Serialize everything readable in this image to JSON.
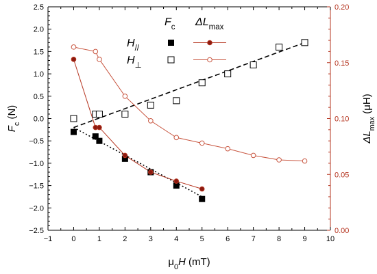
{
  "chart_data": {
    "type": "scatter",
    "x_axis": {
      "label": "μ0H (mT)",
      "label_parts": [
        "μ",
        "0",
        "H",
        " (mT)"
      ],
      "range": [
        -1,
        10
      ],
      "ticks": [
        -1,
        0,
        1,
        2,
        3,
        4,
        5,
        6,
        7,
        8,
        9,
        10
      ],
      "tick_labels": [
        "−1",
        "0",
        "1",
        "2",
        "3",
        "4",
        "5",
        "6",
        "7",
        "8",
        "9",
        "10"
      ]
    },
    "y_axis_left": {
      "label": "Fc (N)",
      "label_parts": [
        "F",
        "c",
        " (N)"
      ],
      "range": [
        -2.5,
        2.5
      ],
      "ticks": [
        -2.5,
        -2.0,
        -1.5,
        -1.0,
        -0.5,
        0.0,
        0.5,
        1.0,
        1.5,
        2.0,
        2.5
      ],
      "tick_labels": [
        "−2.5",
        "−2.0",
        "−1.5",
        "−1.0",
        "−0.5",
        "0.0",
        "0.5",
        "1.0",
        "1.5",
        "2.0",
        "2.5"
      ]
    },
    "y_axis_right": {
      "label": "ΔLmax (μH)",
      "label_parts": [
        "ΔL",
        "max",
        " (μH)"
      ],
      "range": [
        0.0,
        0.2
      ],
      "ticks": [
        0.0,
        0.05,
        0.1,
        0.15,
        0.2
      ],
      "tick_labels": [
        "0.00",
        "0.05",
        "0.10",
        "0.15",
        "0.20"
      ],
      "color": "#b5341f"
    },
    "legend": {
      "placement": "top-center",
      "col_headers": [
        {
          "parts": [
            "F",
            "c"
          ]
        },
        {
          "parts": [
            "ΔL",
            "max"
          ]
        }
      ],
      "rows": [
        {
          "parts": [
            "H",
            "//"
          ]
        },
        {
          "parts": [
            "H",
            "⊥"
          ]
        }
      ]
    },
    "series": [
      {
        "name": "Fc H//",
        "axis": "left",
        "marker": "square-filled",
        "color": "#000000",
        "x": [
          0,
          0.85,
          1.0,
          2.0,
          3.0,
          4.0,
          5.0
        ],
        "y": [
          -0.3,
          -0.4,
          -0.5,
          -0.9,
          -1.2,
          -1.5,
          -1.8
        ]
      },
      {
        "name": "Fc H⊥",
        "axis": "left",
        "marker": "square-open",
        "color": "#000000",
        "x": [
          0,
          0.85,
          1.0,
          2.0,
          3.0,
          4.0,
          5.0,
          6.0,
          7.0,
          8.0,
          9.0
        ],
        "y": [
          0.0,
          0.1,
          0.1,
          0.1,
          0.3,
          0.4,
          0.8,
          1.0,
          1.2,
          1.6,
          1.7
        ]
      },
      {
        "name": "ΔLmax H//",
        "axis": "right",
        "marker": "circle-filled",
        "color": "#b5341f",
        "fill": "#8b1a10",
        "x": [
          0,
          0.85,
          1.0,
          2.0,
          3.0,
          4.0,
          5.0
        ],
        "y": [
          0.153,
          0.092,
          0.092,
          0.067,
          0.052,
          0.044,
          0.037
        ]
      },
      {
        "name": "ΔLmax H⊥",
        "axis": "right",
        "marker": "circle-open",
        "color": "#c8553f",
        "x": [
          0,
          0.85,
          1.0,
          2.0,
          3.0,
          4.0,
          5.0,
          6.0,
          7.0,
          8.0,
          9.0
        ],
        "y": [
          0.164,
          0.16,
          0.153,
          0.12,
          0.098,
          0.083,
          0.078,
          0.073,
          0.067,
          0.063,
          0.062
        ]
      }
    ],
    "fit_lines": [
      {
        "name": "Fc H⊥ fit",
        "style": "dashed",
        "color": "#000000",
        "x": [
          0,
          9.0
        ],
        "y": [
          -0.2,
          1.7
        ]
      },
      {
        "name": "Fc H// fit",
        "style": "dotted",
        "color": "#000000",
        "x": [
          0,
          5.0
        ],
        "y": [
          -0.2,
          -1.75
        ]
      }
    ]
  }
}
